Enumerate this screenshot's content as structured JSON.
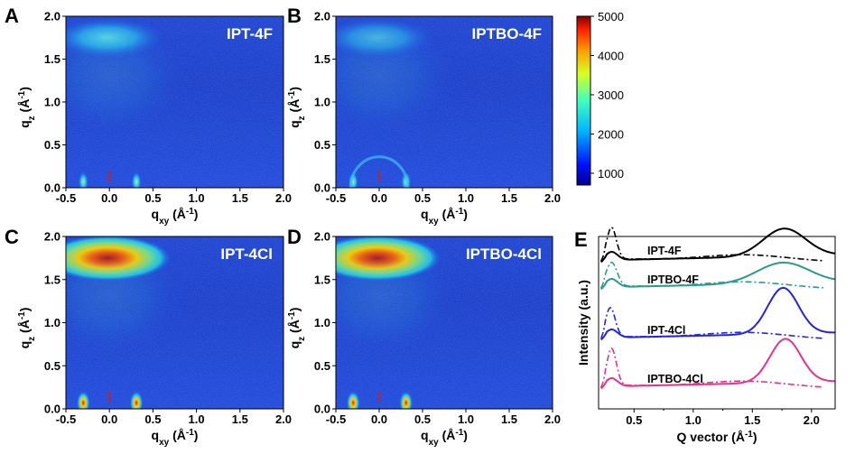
{
  "figure": {
    "panels": [
      {
        "letter": "A",
        "sample": "IPT-4F",
        "pi_intensity": 0.55,
        "ring": false
      },
      {
        "letter": "B",
        "sample": "IPTBO-4F",
        "pi_intensity": 0.3,
        "ring": true
      },
      {
        "letter": "C",
        "sample": "IPT-4Cl",
        "pi_intensity": 1.0,
        "ring": false
      },
      {
        "letter": "D",
        "sample": "IPTBO-4Cl",
        "pi_intensity": 1.0,
        "ring": false
      }
    ],
    "axis": {
      "x_label_main": "q",
      "x_label_sub": "xy",
      "x_label_unit": " (Å",
      "x_label_exp": "-1",
      "x_label_close": ")",
      "y_label_main": "q",
      "y_label_sub": "z",
      "y_label_unit": " (Å",
      "y_label_exp": "-1",
      "y_label_close": ")",
      "x_ticks": [
        "-0.5",
        "0.0",
        "0.5",
        "1.0",
        "1.5",
        "2.0"
      ],
      "y_ticks": [
        "0.0",
        "0.5",
        "1.0",
        "1.5",
        "2.0"
      ]
    },
    "colorbar": {
      "ticks": [
        "5000",
        "4000",
        "3000",
        "2000",
        "1000"
      ]
    },
    "panel_e": {
      "letter": "E"
    }
  },
  "chart_data": {
    "type": "line",
    "title": "",
    "xlabel": "Q vector (Å-1)",
    "ylabel": "Intensity (a.u.)",
    "xlim": [
      0.2,
      2.2
    ],
    "x_ticks": [
      "0.5",
      "1.0",
      "1.5",
      "2.0"
    ],
    "colors": {
      "IPT-4F": "#000000",
      "IPTBO-4F": "#2a9a8f",
      "IPT-4Cl": "#2424e0",
      "IPTBO-4Cl": "#e8308c"
    },
    "series": [
      {
        "name": "IPT-4F",
        "label": "IPT-4F",
        "color": "#000000",
        "offset": 3,
        "oop_peak": {
          "q": 1.77,
          "height": 0.6,
          "width": 0.18
        },
        "ip_peak": {
          "q": 0.31,
          "height": 0.6,
          "width": 0.04
        }
      },
      {
        "name": "IPTBO-4F",
        "label": "IPTBO-4F",
        "color": "#2a9a8f",
        "offset": 2,
        "oop_peak": {
          "q": 1.76,
          "height": 0.45,
          "width": 0.22
        },
        "ip_peak": {
          "q": 0.31,
          "height": 0.45,
          "width": 0.045
        }
      },
      {
        "name": "IPT-4Cl",
        "label": "IPT-4Cl",
        "color": "#2424e0",
        "offset": 1,
        "oop_peak": {
          "q": 1.76,
          "height": 1.0,
          "width": 0.13
        },
        "ip_peak": {
          "q": 0.3,
          "height": 0.55,
          "width": 0.04
        }
      },
      {
        "name": "IPTBO-4Cl",
        "label": "IPTBO-4Cl",
        "color": "#e8308c",
        "offset": 0,
        "oop_peak": {
          "q": 1.78,
          "height": 0.95,
          "width": 0.13
        },
        "ip_peak": {
          "q": 0.31,
          "height": 0.7,
          "width": 0.04
        }
      }
    ]
  }
}
